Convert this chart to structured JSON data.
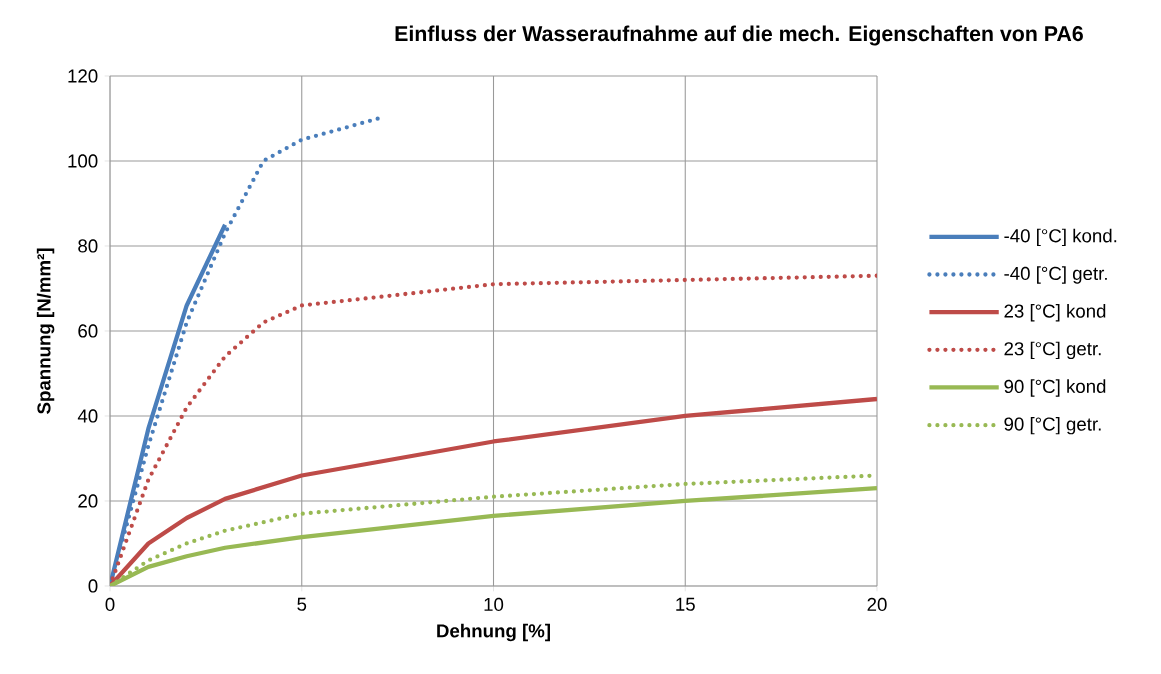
{
  "chart_data": {
    "type": "line",
    "title": "Einfluss der Wasseraufnahme auf die mech. Eigenschaften von PA6",
    "xlabel": "Dehnung [%]",
    "ylabel": "Spannung [N/mm²]",
    "xlim": [
      0,
      20
    ],
    "ylim": [
      0,
      120
    ],
    "xticks": [
      0,
      5,
      10,
      15,
      20
    ],
    "yticks": [
      0,
      20,
      40,
      60,
      80,
      100,
      120
    ],
    "grid": true,
    "legend": "right",
    "marker": "none",
    "series": [
      {
        "name": "-40 [°C] kond.",
        "color": "#4a7ebb",
        "line_style": "solid",
        "x": [
          0,
          1,
          2,
          3
        ],
        "values": [
          0,
          37,
          66,
          85
        ]
      },
      {
        "name": "-40 [°C] getr.",
        "color": "#4a7ebb",
        "line_style": "dotted",
        "x": [
          0,
          1,
          2,
          3,
          4,
          5,
          7
        ],
        "values": [
          0,
          33,
          62,
          83,
          100,
          105,
          110
        ]
      },
      {
        "name": "23 [°C] kond",
        "color": "#be4b48",
        "line_style": "solid",
        "x": [
          0,
          1,
          2,
          3,
          5,
          10,
          15,
          20
        ],
        "values": [
          0,
          10,
          16,
          20.5,
          26,
          34,
          40,
          44
        ]
      },
      {
        "name": "23 [°C] getr.",
        "color": "#be4b48",
        "line_style": "dotted",
        "x": [
          0,
          1,
          2,
          3,
          4,
          5,
          10,
          15,
          20
        ],
        "values": [
          0,
          25,
          42,
          54,
          62,
          66,
          71,
          72,
          73
        ]
      },
      {
        "name": "90 [°C] kond",
        "color": "#98b954",
        "line_style": "solid",
        "x": [
          0,
          1,
          2,
          3,
          5,
          10,
          15,
          20
        ],
        "values": [
          0,
          4.5,
          7,
          9,
          11.5,
          16.5,
          20,
          23
        ]
      },
      {
        "name": "90 [°C] getr.",
        "color": "#98b954",
        "line_style": "dotted",
        "x": [
          0,
          1,
          2,
          3,
          5,
          10,
          15,
          20
        ],
        "values": [
          0,
          6,
          10,
          13,
          17,
          21,
          24,
          26
        ]
      }
    ]
  }
}
